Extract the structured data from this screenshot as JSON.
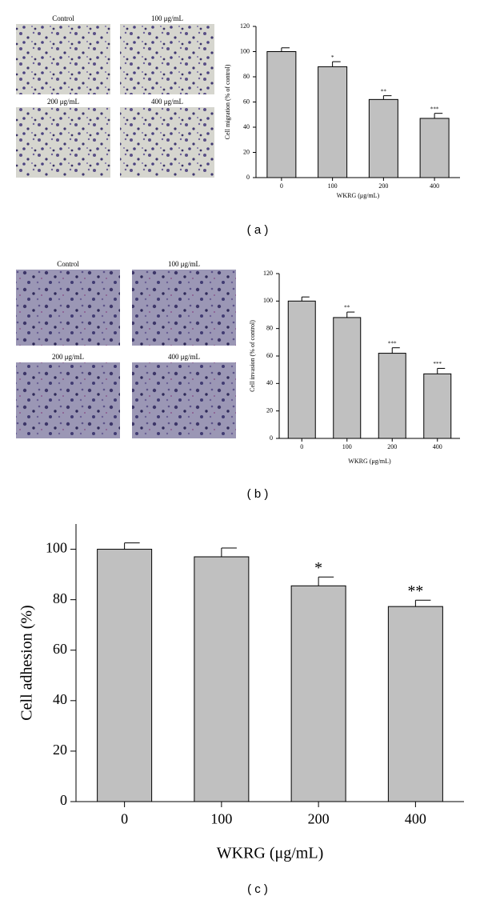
{
  "chart_data": [
    {
      "type": "bar",
      "panel_label": "( a )",
      "image_labels": [
        "Control",
        "100 μg/mL",
        "200 μg/mL",
        "400 μg/mL"
      ],
      "y_label": "Cell migration (% of control)",
      "x_label": "WKRG (μg/mL)",
      "categories": [
        "0",
        "100",
        "200",
        "400"
      ],
      "values": [
        100,
        88,
        62,
        47
      ],
      "errors": [
        3,
        4,
        3,
        4
      ],
      "annotations": [
        null,
        "*",
        "**",
        "***"
      ],
      "color": "#c0c0c0",
      "ylim": [
        0,
        120
      ],
      "yticks": [
        0,
        20,
        40,
        60,
        80,
        100,
        120
      ]
    },
    {
      "type": "bar",
      "panel_label": "( b )",
      "image_labels": [
        "Control",
        "100 μg/mL",
        "200 μg/mL",
        "400 μg/mL"
      ],
      "y_label": "Cell invasion (% of control)",
      "x_label": "WKRG (μg/mL)",
      "categories": [
        "0",
        "100",
        "200",
        "400"
      ],
      "values": [
        100,
        88,
        62,
        47
      ],
      "errors": [
        3,
        4,
        4,
        4
      ],
      "annotations": [
        null,
        "**",
        "***",
        "***"
      ],
      "color": "#c0c0c0",
      "ylim": [
        0,
        120
      ],
      "yticks": [
        0,
        20,
        40,
        60,
        80,
        100,
        120
      ]
    },
    {
      "type": "bar",
      "panel_label": "( c )",
      "y_label": "Cell adhesion (%)",
      "x_label": "WKRG (μg/mL)",
      "categories": [
        "0",
        "100",
        "200",
        "400"
      ],
      "values": [
        100,
        97,
        85.5,
        77.3
      ],
      "errors": [
        2.5,
        3.5,
        3.5,
        2.5
      ],
      "annotations": [
        null,
        null,
        "*",
        "**"
      ],
      "color": "#c0c0c0",
      "ylim": [
        0,
        110
      ],
      "yticks": [
        0,
        20,
        40,
        60,
        80,
        100
      ]
    }
  ]
}
